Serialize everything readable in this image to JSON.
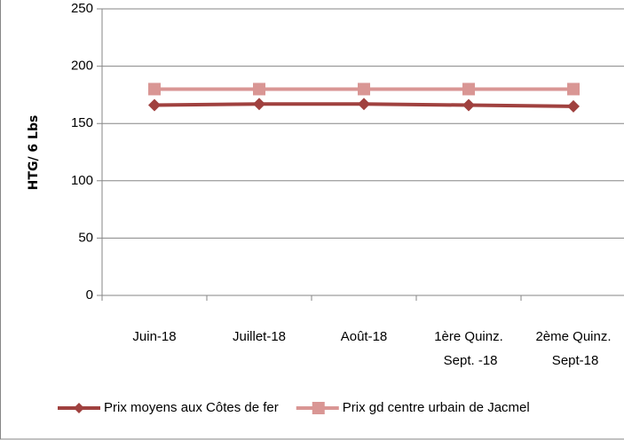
{
  "chart_data": {
    "type": "line",
    "y_label": "HTG/ 6 Lbs",
    "categories": [
      "Juin-18",
      "Juillet-18",
      "Août-18",
      "1ère Quinz. Sept. -18",
      "2ème Quinz. Sept-18"
    ],
    "series": [
      {
        "name": "Prix moyens aux Côtes de fer",
        "color": "#a0413f",
        "marker": "diamond",
        "values": [
          166,
          167,
          167,
          166,
          165
        ]
      },
      {
        "name": "Prix gd centre urbain de Jacmel",
        "color": "#d99694",
        "marker": "square",
        "values": [
          180,
          180,
          180,
          180,
          180
        ]
      }
    ],
    "ylim": [
      0,
      250
    ],
    "yticks": [
      0,
      50,
      100,
      150,
      200,
      250
    ],
    "grid": true,
    "legend": "bottom"
  }
}
